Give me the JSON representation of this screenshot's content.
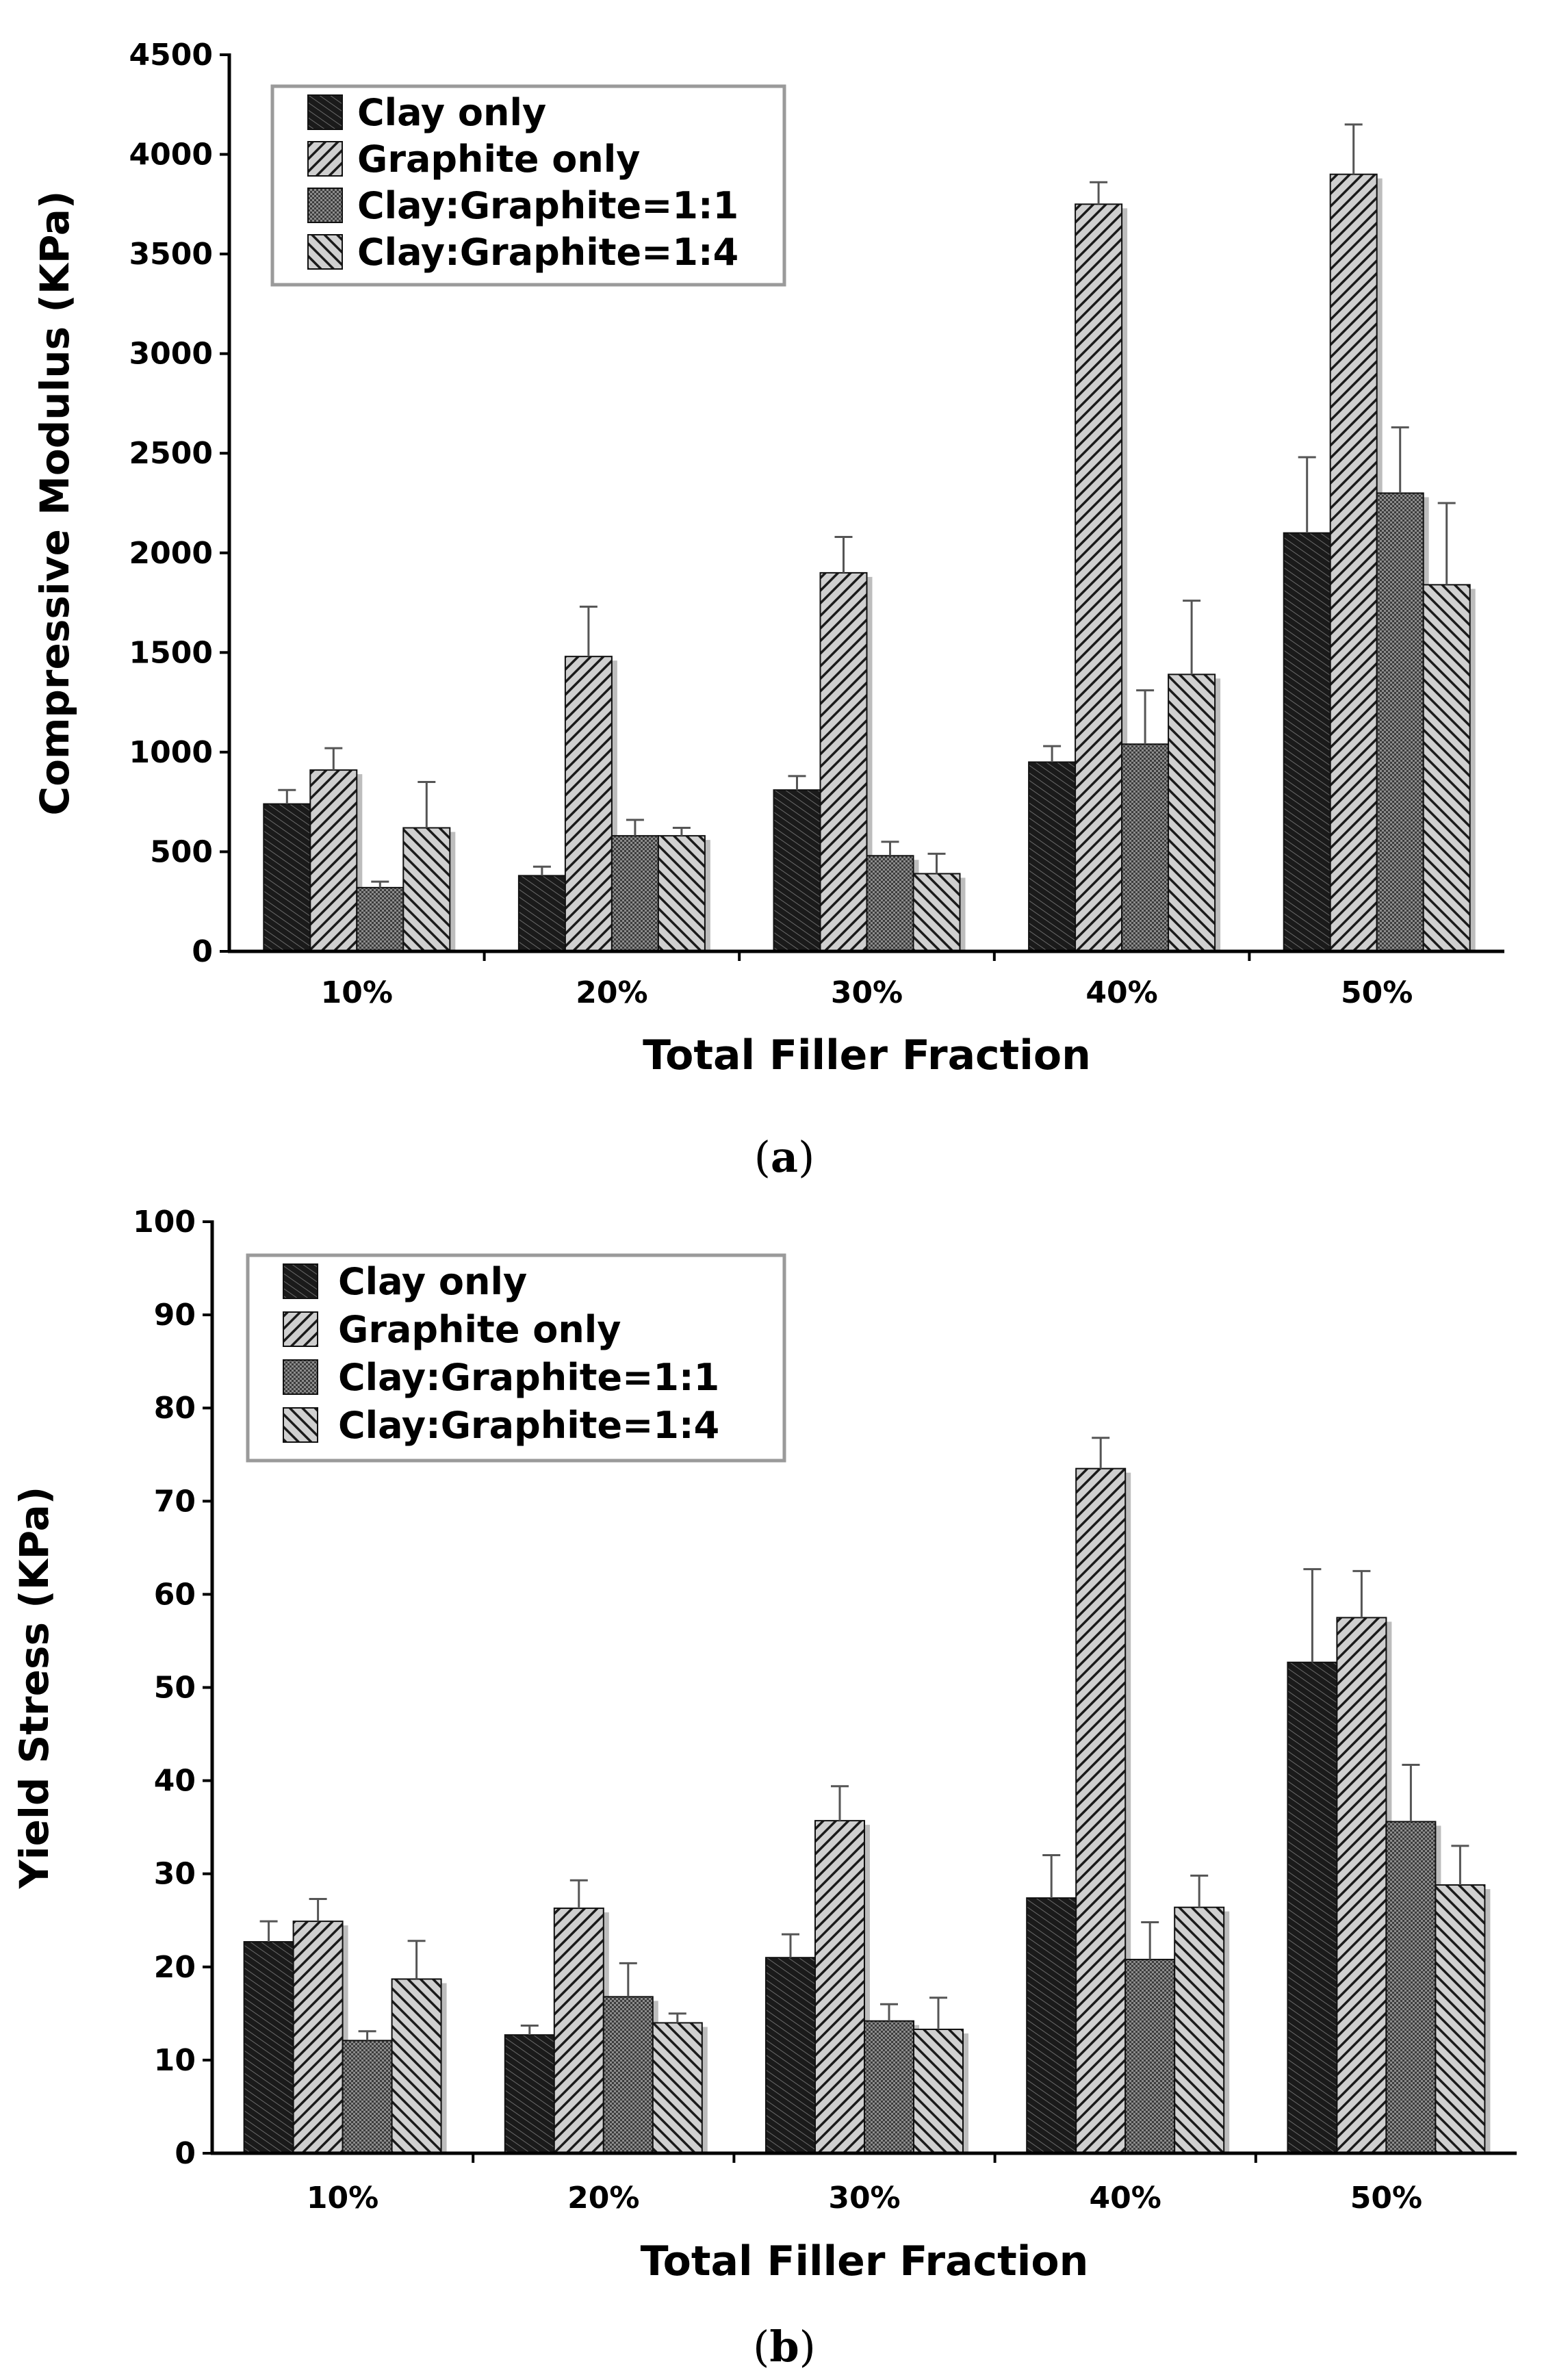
{
  "chart_data": [
    {
      "type": "bar",
      "caption_open": "(",
      "caption_letter": "a",
      "caption_close": ")",
      "title": "",
      "xlabel": "Total Filler Fraction",
      "ylabel": "Compressive Modulus (KPa)",
      "ylim": [
        0,
        4500
      ],
      "ytick_step": 500,
      "yticks": [
        "0",
        "500",
        "1000",
        "1500",
        "2000",
        "2500",
        "3000",
        "3500",
        "4000",
        "4500"
      ],
      "categories": [
        "10%",
        "20%",
        "30%",
        "40%",
        "50%"
      ],
      "legend_position": "top-left",
      "series": [
        {
          "name": "Clay only",
          "pattern": "clay",
          "values": [
            740,
            380,
            810,
            950,
            2100
          ],
          "errors": [
            70,
            45,
            70,
            80,
            380
          ]
        },
        {
          "name": "Graphite only",
          "pattern": "graphite",
          "values": [
            910,
            1480,
            1900,
            3750,
            3900
          ],
          "errors": [
            110,
            250,
            180,
            110,
            250
          ]
        },
        {
          "name": "Clay:Graphite=1:1",
          "pattern": "mix11",
          "values": [
            320,
            580,
            480,
            1040,
            2300
          ],
          "errors": [
            30,
            80,
            70,
            270,
            330
          ]
        },
        {
          "name": "Clay:Graphite=1:4",
          "pattern": "mix14",
          "values": [
            620,
            580,
            390,
            1390,
            1840
          ],
          "errors": [
            230,
            40,
            100,
            370,
            410
          ]
        }
      ]
    },
    {
      "type": "bar",
      "caption_open": "(",
      "caption_letter": "b",
      "caption_close": ")",
      "title": "",
      "xlabel": "Total Filler Fraction",
      "ylabel": "Yield Stress (KPa)",
      "ylim": [
        0,
        100
      ],
      "ytick_step": 10,
      "yticks": [
        "0",
        "10",
        "20",
        "30",
        "40",
        "50",
        "60",
        "70",
        "80",
        "90",
        "100"
      ],
      "categories": [
        "10%",
        "20%",
        "30%",
        "40%",
        "50%"
      ],
      "legend_position": "top-left",
      "series": [
        {
          "name": "Clay only",
          "pattern": "clay",
          "values": [
            22.7,
            12.7,
            21.0,
            27.4,
            52.7
          ],
          "errors": [
            2.2,
            1.0,
            2.5,
            4.6,
            10.0
          ]
        },
        {
          "name": "Graphite only",
          "pattern": "graphite",
          "values": [
            24.9,
            26.3,
            35.7,
            73.5,
            57.5
          ],
          "errors": [
            2.4,
            3.0,
            3.7,
            3.3,
            5.0
          ]
        },
        {
          "name": "Clay:Graphite=1:1",
          "pattern": "mix11",
          "values": [
            12.1,
            16.8,
            14.2,
            20.8,
            35.6
          ],
          "errors": [
            1.0,
            3.6,
            1.8,
            4.0,
            6.1
          ]
        },
        {
          "name": "Clay:Graphite=1:4",
          "pattern": "mix14",
          "values": [
            18.7,
            14.0,
            13.3,
            26.4,
            28.8
          ],
          "errors": [
            4.1,
            1.0,
            3.4,
            3.4,
            4.2
          ]
        }
      ]
    }
  ]
}
